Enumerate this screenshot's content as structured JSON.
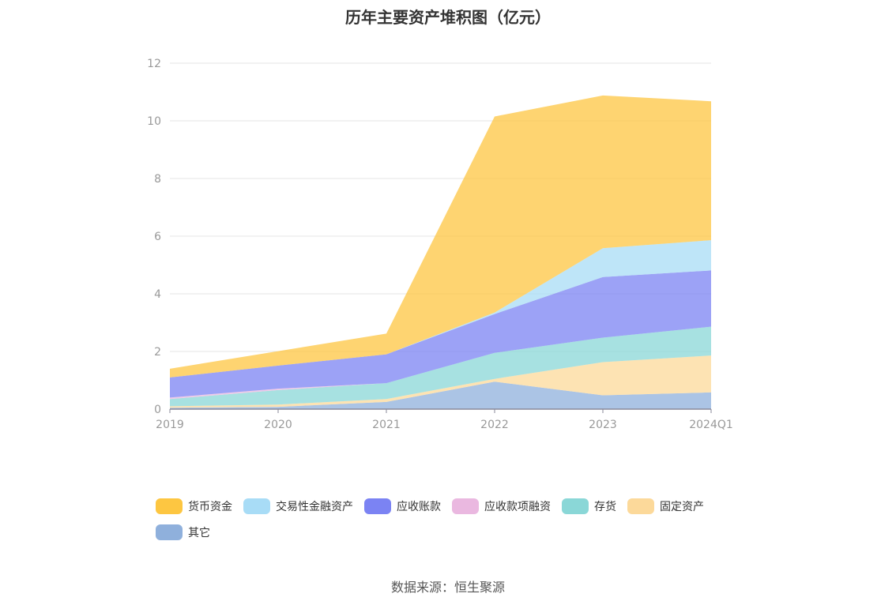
{
  "chart_data": {
    "type": "area",
    "stacked": true,
    "title": "历年主要资产堆积图（亿元）",
    "categories": [
      "2019",
      "2020",
      "2021",
      "2022",
      "2023",
      "2024Q1"
    ],
    "ylim": [
      0,
      12
    ],
    "yticks": [
      0,
      2,
      4,
      6,
      8,
      10,
      12
    ],
    "xlabel": "",
    "ylabel": "",
    "grid": true,
    "legend_position": "bottom",
    "series": [
      {
        "name": "其它",
        "color": "#8fb0dc",
        "values": [
          0.05,
          0.08,
          0.25,
          0.95,
          0.48,
          0.58
        ]
      },
      {
        "name": "固定资产",
        "color": "#fcd99a",
        "values": [
          0.05,
          0.08,
          0.1,
          0.1,
          1.15,
          1.28
        ]
      },
      {
        "name": "存货",
        "color": "#8ad7d7",
        "values": [
          0.25,
          0.5,
          0.55,
          0.9,
          0.85,
          1.0
        ]
      },
      {
        "name": "应收款项融资",
        "color": "#eab8e0",
        "values": [
          0.05,
          0.05,
          0.0,
          0.0,
          0.0,
          0.0
        ]
      },
      {
        "name": "应收账款",
        "color": "#7b83f3",
        "values": [
          0.7,
          0.8,
          1.0,
          1.35,
          2.1,
          1.95
        ]
      },
      {
        "name": "交易性金融资产",
        "color": "#a8dcf6",
        "values": [
          0.0,
          0.0,
          0.0,
          0.05,
          1.0,
          1.05
        ]
      },
      {
        "name": "货币资金",
        "color": "#fdc641",
        "values": [
          0.3,
          0.5,
          0.72,
          6.8,
          5.3,
          4.82
        ]
      }
    ]
  },
  "legend_order": [
    "货币资金",
    "交易性金融资产",
    "应收账款",
    "应收款项融资",
    "存货",
    "固定资产",
    "其它"
  ],
  "source_text": "数据来源：恒生聚源"
}
